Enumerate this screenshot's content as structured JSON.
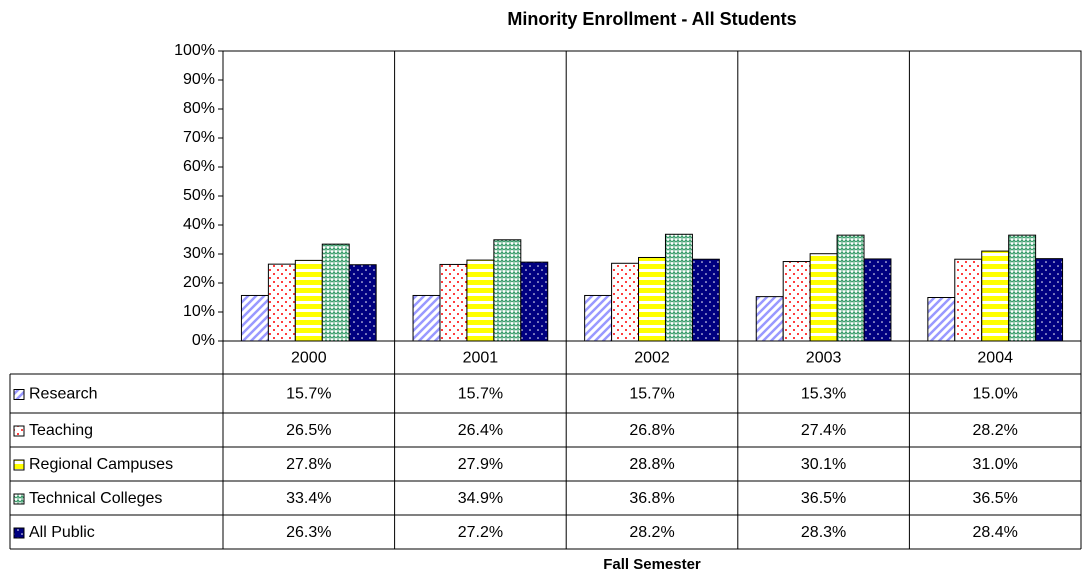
{
  "chart_data": {
    "type": "bar",
    "title": "Minority Enrollment - All Students",
    "x_label": "Fall Semester",
    "categories": [
      "2000",
      "2001",
      "2002",
      "2003",
      "2004"
    ],
    "series": [
      {
        "name": "Research",
        "color": "#9999ff",
        "values": [
          15.7,
          15.7,
          15.7,
          15.3,
          15.0
        ],
        "value_labels": [
          "15.7%",
          "15.7%",
          "15.7%",
          "15.3%",
          "15.0%"
        ]
      },
      {
        "name": "Teaching",
        "color": "#ff0000",
        "values": [
          26.5,
          26.4,
          26.8,
          27.4,
          28.2
        ],
        "value_labels": [
          "26.5%",
          "26.4%",
          "26.8%",
          "27.4%",
          "28.2%"
        ]
      },
      {
        "name": "Regional Campuses",
        "color": "#ffff00",
        "values": [
          27.8,
          27.9,
          28.8,
          30.1,
          31.0
        ],
        "value_labels": [
          "27.8%",
          "27.9%",
          "28.8%",
          "30.1%",
          "31.0%"
        ]
      },
      {
        "name": "Technical Colleges",
        "color": "#339966",
        "values": [
          33.4,
          34.9,
          36.8,
          36.5,
          36.5
        ],
        "value_labels": [
          "33.4%",
          "34.9%",
          "36.8%",
          "36.5%",
          "36.5%"
        ]
      },
      {
        "name": "All Public",
        "color": "#000080",
        "values": [
          26.3,
          27.2,
          28.2,
          28.3,
          28.4
        ],
        "value_labels": [
          "26.3%",
          "27.2%",
          "28.2%",
          "28.3%",
          "28.4%"
        ]
      }
    ],
    "ylim": [
      0,
      100
    ],
    "yticks": [
      {
        "value": 0,
        "label": "0%"
      },
      {
        "value": 10,
        "label": "10%"
      },
      {
        "value": 20,
        "label": "20%"
      },
      {
        "value": 30,
        "label": "30%"
      },
      {
        "value": 40,
        "label": "40%"
      },
      {
        "value": 50,
        "label": "50%"
      },
      {
        "value": 60,
        "label": "60%"
      },
      {
        "value": 70,
        "label": "70%"
      },
      {
        "value": 80,
        "label": "80%"
      },
      {
        "value": 90,
        "label": "90%"
      },
      {
        "value": 100,
        "label": "100%"
      }
    ],
    "grid": false
  }
}
